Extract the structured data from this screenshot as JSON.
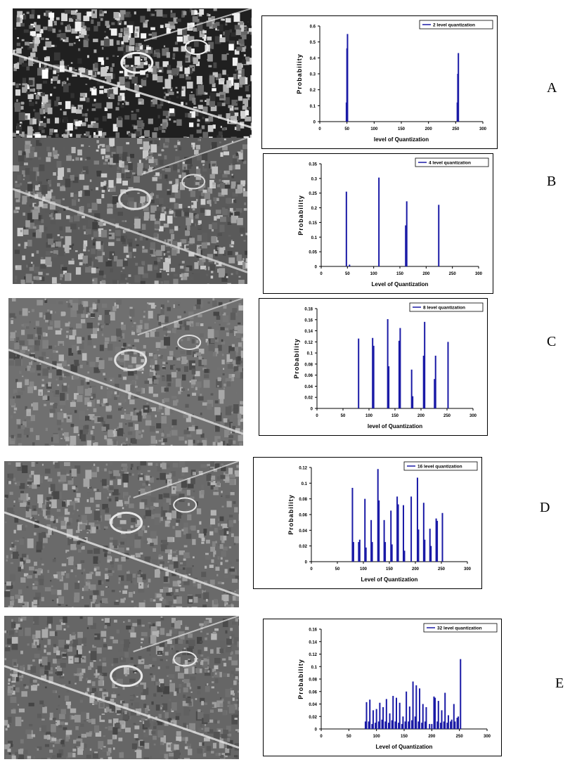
{
  "row_labels": [
    "A",
    "B",
    "C",
    "D",
    "E"
  ],
  "chart_data": [
    {
      "type": "bar",
      "legend": "2 level quantization",
      "xlabel": "level of Quantization",
      "ylabel": "Probability",
      "xlim": [
        0,
        300
      ],
      "xticks": [
        0,
        50,
        100,
        150,
        200,
        250,
        300
      ],
      "ylim": [
        0,
        0.6
      ],
      "yticks": [
        "0",
        "0.1",
        "0.2",
        "0.3",
        "0.4",
        "0.5",
        "0.6"
      ],
      "x": [
        49,
        50,
        51,
        253,
        254,
        255
      ],
      "values": [
        0.12,
        0.46,
        0.55,
        0.12,
        0.3,
        0.43
      ]
    },
    {
      "type": "bar",
      "legend": "4 level quantization",
      "xlabel": "Level of Quantization",
      "ylabel": "Probability",
      "xlim": [
        0,
        300
      ],
      "xticks": [
        0,
        50,
        100,
        150,
        200,
        250,
        300
      ],
      "ylim": [
        0,
        0.35
      ],
      "yticks": [
        "0",
        "0.05",
        "0.1",
        "0.15",
        "0.2",
        "0.25",
        "0.3",
        "0.35"
      ],
      "x": [
        48,
        54,
        110,
        161,
        163,
        224
      ],
      "values": [
        0.255,
        0.006,
        0.303,
        0.14,
        0.222,
        0.21
      ]
    },
    {
      "type": "bar",
      "legend": "8 level quantization",
      "xlabel": "level of Quantization",
      "ylabel": "Probability",
      "xlim": [
        0,
        300
      ],
      "xticks": [
        0,
        50,
        100,
        150,
        200,
        250,
        300
      ],
      "ylim": [
        0,
        0.18
      ],
      "yticks": [
        "0",
        "0.02",
        "0.04",
        "0.06",
        "0.08",
        "0.1",
        "0.12",
        "0.14",
        "0.16",
        "0.18"
      ],
      "x": [
        80,
        107,
        109,
        136,
        138,
        158,
        160,
        182,
        184,
        205,
        207,
        226,
        228,
        252
      ],
      "values": [
        0.126,
        0.127,
        0.113,
        0.161,
        0.076,
        0.122,
        0.145,
        0.07,
        0.022,
        0.095,
        0.156,
        0.053,
        0.095,
        0.12
      ]
    },
    {
      "type": "bar",
      "legend": "16 level quantization",
      "xlabel": "Level of Quantization",
      "ylabel": "Probability",
      "xlim": [
        0,
        300
      ],
      "xticks": [
        0,
        50,
        100,
        150,
        200,
        250,
        300
      ],
      "ylim": [
        0,
        0.12
      ],
      "yticks": [
        "0",
        "0.02",
        "0.04",
        "0.06",
        "0.08",
        "0.1",
        "0.12"
      ],
      "x": [
        79,
        81,
        91,
        93,
        103,
        105,
        115,
        117,
        128,
        130,
        140,
        142,
        153,
        155,
        165,
        167,
        177,
        179,
        192,
        204,
        206,
        216,
        218,
        228,
        230,
        240,
        242,
        252
      ],
      "values": [
        0.094,
        0.025,
        0.025,
        0.028,
        0.08,
        0.018,
        0.053,
        0.025,
        0.118,
        0.078,
        0.053,
        0.025,
        0.065,
        0.022,
        0.083,
        0.073,
        0.072,
        0.014,
        0.083,
        0.107,
        0.041,
        0.075,
        0.028,
        0.042,
        0.02,
        0.055,
        0.052,
        0.062
      ]
    },
    {
      "type": "bar",
      "legend": "32 level quantization",
      "xlabel": "Level of Quantization",
      "ylabel": "Probability",
      "xlim": [
        0,
        300
      ],
      "xticks": [
        0,
        50,
        100,
        150,
        200,
        250,
        300
      ],
      "ylim": [
        0,
        0.16
      ],
      "yticks": [
        "0",
        "0.02",
        "0.04",
        "0.06",
        "0.08",
        "0.1",
        "0.12",
        "0.14",
        "0.16"
      ],
      "x": [
        80,
        82,
        86,
        88,
        92,
        94,
        98,
        100,
        104,
        106,
        110,
        112,
        116,
        118,
        122,
        124,
        128,
        130,
        134,
        136,
        140,
        142,
        146,
        148,
        152,
        154,
        158,
        160,
        164,
        166,
        170,
        172,
        176,
        178,
        182,
        184,
        188,
        190,
        196,
        200,
        204,
        206,
        210,
        212,
        216,
        218,
        222,
        224,
        228,
        230,
        234,
        236,
        240,
        242,
        246,
        248,
        252
      ],
      "values": [
        0.012,
        0.043,
        0.012,
        0.047,
        0.008,
        0.03,
        0.01,
        0.032,
        0.012,
        0.042,
        0.015,
        0.035,
        0.012,
        0.048,
        0.01,
        0.025,
        0.014,
        0.053,
        0.012,
        0.05,
        0.01,
        0.042,
        0.008,
        0.02,
        0.012,
        0.06,
        0.012,
        0.036,
        0.014,
        0.076,
        0.02,
        0.07,
        0.012,
        0.065,
        0.01,
        0.04,
        0.012,
        0.035,
        0.008,
        0.008,
        0.052,
        0.05,
        0.012,
        0.045,
        0.01,
        0.03,
        0.012,
        0.058,
        0.01,
        0.022,
        0.012,
        0.015,
        0.04,
        0.012,
        0.018,
        0.02,
        0.112
      ]
    }
  ]
}
